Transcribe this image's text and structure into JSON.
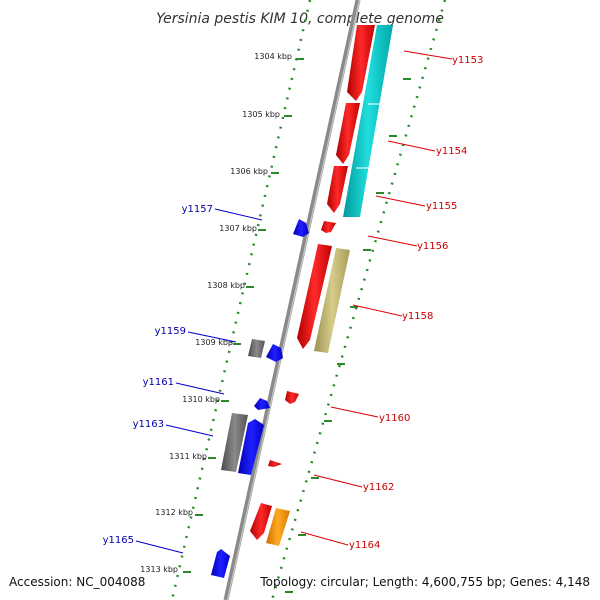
{
  "title": "Yersinia pestis KIM 10, complete genome",
  "footer": {
    "accession": "Accession: NC_004088",
    "topology": "Topology: circular; Length: 4,600,755 bp; Genes: 4,148"
  },
  "kbp_labels": [
    "1304 kbp",
    "1305 kbp",
    "1306 kbp",
    "1307 kbp",
    "1308 kbp",
    "1309 kbp",
    "1310 kbp",
    "1311 kbp",
    "1312 kbp",
    "1313 kbp"
  ],
  "genes_right": [
    "y1153",
    "y1154",
    "y1155",
    "y1156",
    "y1158",
    "y1160",
    "y1162",
    "y1164"
  ],
  "genes_left": [
    "y1157",
    "y1159",
    "y1161",
    "y1163",
    "y1165"
  ],
  "colors": {
    "red": "#ff0000",
    "cyan": "#00cccc",
    "blue": "#0000ff",
    "gray": "#707070",
    "khaki": "#c8bd78",
    "orange": "#ff9900",
    "dotted": "#2a8a2a",
    "backbone": "#8a8a8a"
  }
}
